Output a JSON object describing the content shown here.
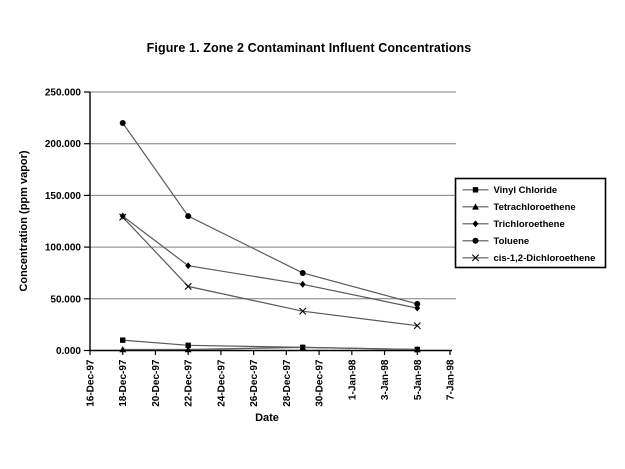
{
  "chart_data": {
    "type": "line",
    "title": "Figure 1. Zone 2 Contaminant Influent Concentrations",
    "xlabel": "Date",
    "ylabel": "Concentration (ppm vapor)",
    "x_ticks": [
      "16-Dec-97",
      "18-Dec-97",
      "20-Dec-97",
      "22-Dec-97",
      "24-Dec-97",
      "26-Dec-97",
      "28-Dec-97",
      "30-Dec-97",
      "1-Jan-98",
      "3-Jan-98",
      "5-Jan-98",
      "7-Jan-98"
    ],
    "x_tick_days": [
      0,
      2,
      4,
      6,
      8,
      10,
      12,
      14,
      16,
      18,
      20,
      22
    ],
    "y_ticks": [
      "0.000",
      "50.000",
      "100.000",
      "150.000",
      "200.000",
      "250.000"
    ],
    "y_tick_values": [
      0,
      50,
      100,
      150,
      200,
      250
    ],
    "ylim": [
      0,
      250
    ],
    "x_range_days": 22,
    "grid": "horizontal gridlines at 50-unit intervals",
    "legend_position": "right",
    "x": [
      "18-Dec-97",
      "22-Dec-97",
      "29-Dec-97",
      "5-Jan-98"
    ],
    "x_days": [
      2,
      6,
      13,
      20
    ],
    "series": [
      {
        "name": "Vinyl Chloride",
        "marker": "square",
        "values": [
          10,
          5,
          3,
          1
        ]
      },
      {
        "name": "Tetrachloroethene",
        "marker": "triangle",
        "values": [
          1,
          1,
          3,
          1
        ]
      },
      {
        "name": "Trichloroethene",
        "marker": "diamond",
        "values": [
          130,
          82,
          64,
          41
        ]
      },
      {
        "name": "Toluene",
        "marker": "circle",
        "values": [
          220,
          130,
          75,
          45
        ]
      },
      {
        "name": "cis-1,2-Dichloroethene",
        "marker": "x",
        "values": [
          129,
          62,
          38,
          24
        ]
      }
    ],
    "colors": {
      "line": "#595959",
      "marker": "#000000",
      "gridline": "#7f7f7f",
      "axis": "#000000",
      "background": "#ffffff",
      "legend_border": "#000000"
    }
  }
}
